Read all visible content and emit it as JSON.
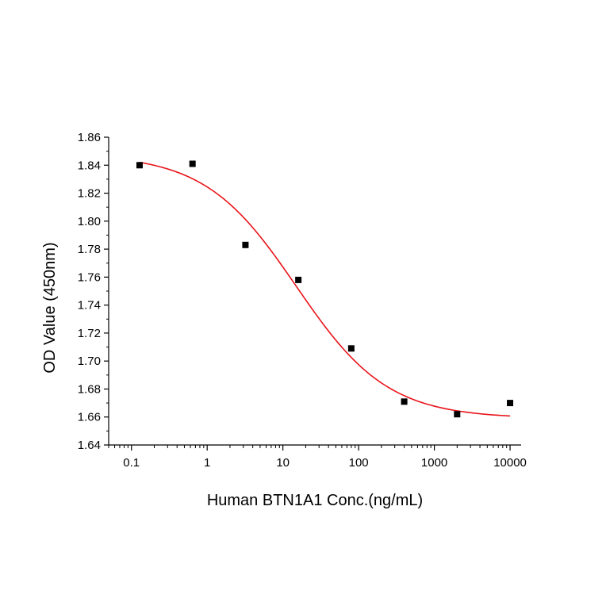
{
  "chart_data": {
    "type": "scatter",
    "title": "",
    "xlabel": "Human BTN1A1 Conc.(ng/mL)",
    "ylabel": "OD Value (450nm)",
    "x_scale": "log",
    "xlim": [
      0.05,
      14000
    ],
    "ylim": [
      1.64,
      1.86
    ],
    "x_ticks": [
      0.1,
      1,
      10,
      100,
      1000,
      10000
    ],
    "x_tick_labels": [
      "0.1",
      "1",
      "10",
      "100",
      "1000",
      "10000"
    ],
    "y_ticks": [
      1.64,
      1.66,
      1.68,
      1.7,
      1.72,
      1.74,
      1.76,
      1.78,
      1.8,
      1.82,
      1.84,
      1.86
    ],
    "y_tick_labels": [
      "1.64",
      "1.66",
      "1.68",
      "1.70",
      "1.72",
      "1.74",
      "1.76",
      "1.78",
      "1.80",
      "1.82",
      "1.84",
      "1.86"
    ],
    "grid": false,
    "legend": "none",
    "points": {
      "x": [
        0.128,
        0.64,
        3.2,
        16,
        80,
        400,
        2000,
        10000
      ],
      "y": [
        1.84,
        1.841,
        1.783,
        1.758,
        1.709,
        1.671,
        1.662,
        1.67
      ],
      "marker": "square",
      "color": "#000000"
    },
    "fit": {
      "model": "4PL",
      "top": 1.848,
      "bottom": 1.659,
      "ec50": 15,
      "hill": 0.72,
      "x_range": [
        0.128,
        10000
      ],
      "color": "#e8141a"
    }
  }
}
